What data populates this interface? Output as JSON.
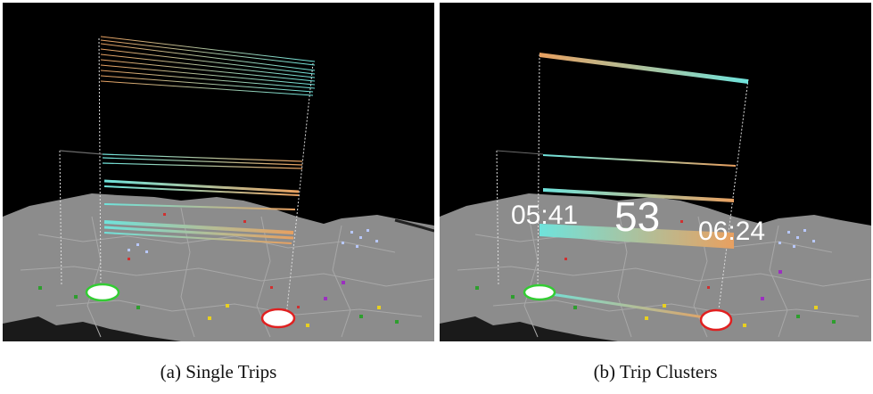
{
  "panels": [
    {
      "id": "a",
      "caption": "(a) Single Trips"
    },
    {
      "id": "b",
      "caption": "(b) Trip Clusters",
      "labels": {
        "start_time": "05:41",
        "count": "53",
        "end_time": "06:24"
      }
    }
  ],
  "colors": {
    "background": "#000000",
    "land": "#8c8c8c",
    "origin_ring": "#33cc33",
    "destination_ring": "#e02020",
    "trip_start": "#6fe3dc",
    "trip_end": "#e8a060"
  }
}
